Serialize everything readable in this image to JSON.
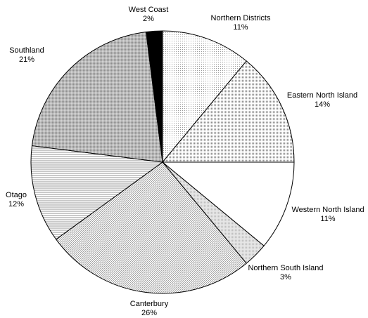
{
  "chart_data": {
    "type": "pie",
    "start": "12 o'clock",
    "direction": "clockwise",
    "slices": [
      {
        "name": "Northern Districts",
        "value": 11,
        "label": "11%",
        "pattern": "dots-sparse"
      },
      {
        "name": "Eastern North Island",
        "value": 14,
        "label": "14%",
        "pattern": "dots-dense"
      },
      {
        "name": "Western North Island",
        "value": 11,
        "label": "11%",
        "pattern": "white"
      },
      {
        "name": "Northern South Island",
        "value": 3,
        "label": "3%",
        "pattern": "light-grey"
      },
      {
        "name": "Canterbury",
        "value": 26,
        "label": "26%",
        "pattern": "diagonal"
      },
      {
        "name": "Otago",
        "value": 12,
        "label": "12%",
        "pattern": "horizontal"
      },
      {
        "name": "Southland",
        "value": 21,
        "label": "21%",
        "pattern": "grey-dense"
      },
      {
        "name": "West Coast",
        "value": 2,
        "label": "2%",
        "pattern": "black"
      }
    ],
    "colors": {
      "outline": "#000000",
      "background": "#ffffff"
    }
  }
}
